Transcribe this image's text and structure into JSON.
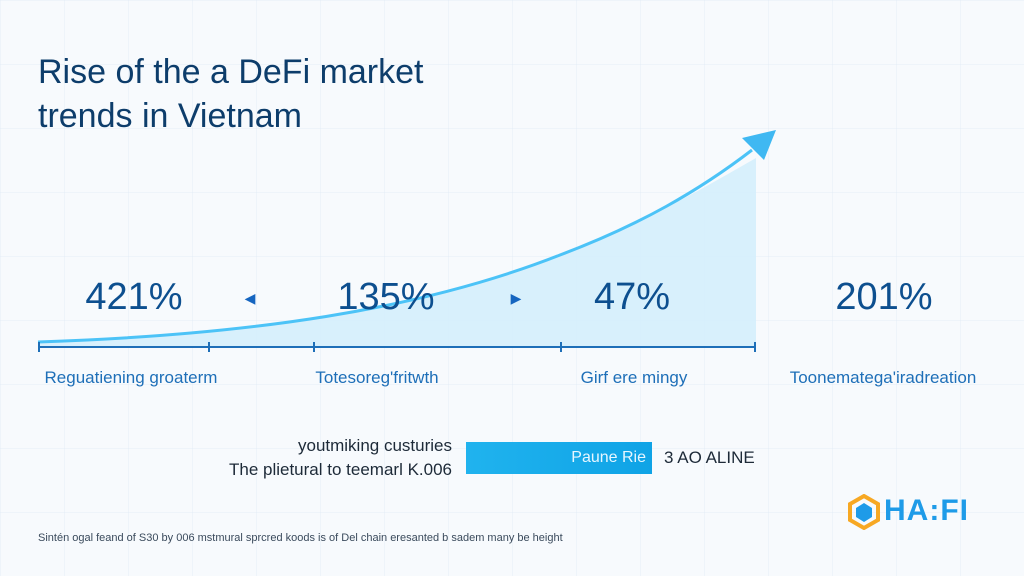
{
  "title": "Rise of the a DeFi market\ntrends in Vietnam",
  "colors": {
    "accent": "#29b6f6",
    "text": "#0d3d6b",
    "area": "#d4eefc"
  },
  "stats": [
    {
      "value": "421%",
      "label": "Reguatiening groaterm"
    },
    {
      "value": "135%",
      "label": "Totesoreg'fritwth"
    },
    {
      "value": "47%",
      "label": "Girf ere mingy"
    },
    {
      "value": "201%",
      "label": "Toonematega'iradreation"
    }
  ],
  "arrows": {
    "left": "◀",
    "right": "▶"
  },
  "note": {
    "line1": "youtmiking custuries",
    "line2": "The plietural to teemarl K.006"
  },
  "bar": {
    "label": "Paune Rie",
    "fill": 1.0
  },
  "status": "3 AO ALINE",
  "footer": "Sintén ogal feand of S30 by 006 mstmural sprcred koods is of Del chain eresanted b sadem many be height",
  "logo": {
    "text": "HA:FI",
    "icon": "hexagon-logo-icon"
  }
}
